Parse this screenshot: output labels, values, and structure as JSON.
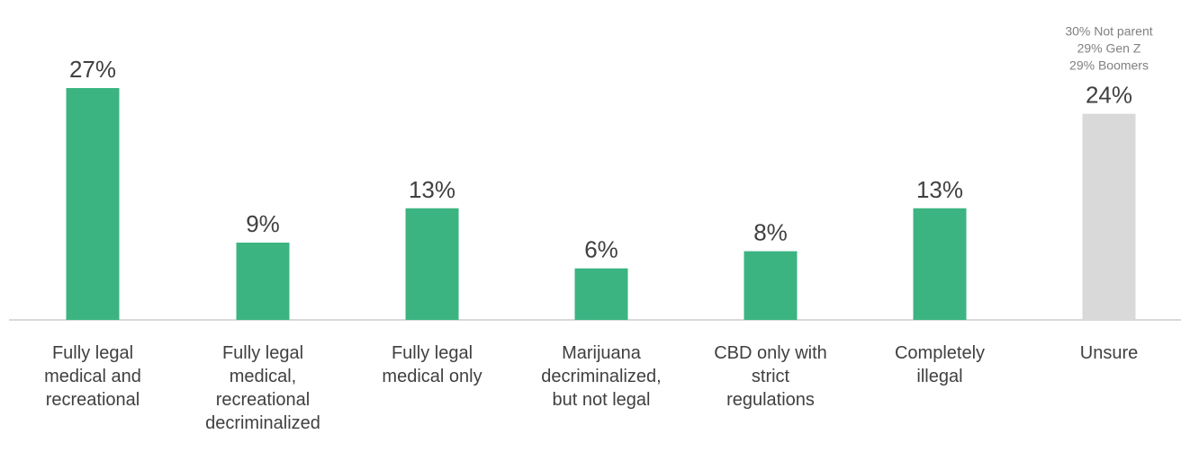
{
  "chart_data": {
    "type": "bar",
    "categories": [
      [
        "Fully legal",
        "medical and",
        "recreational"
      ],
      [
        "Fully legal",
        "medical,",
        "recreational",
        "decriminalized"
      ],
      [
        "Fully legal",
        "medical only"
      ],
      [
        "Marijuana",
        "decriminalized,",
        "but not legal"
      ],
      [
        "CBD only with",
        "strict",
        "regulations"
      ],
      [
        "Completely",
        "illegal"
      ],
      [
        "Unsure"
      ]
    ],
    "values": [
      27,
      9,
      13,
      6,
      8,
      13,
      24
    ],
    "value_labels": [
      "27%",
      "9%",
      "13%",
      "6%",
      "8%",
      "13%",
      "24%"
    ],
    "bar_colors": [
      "#3bb482",
      "#3bb482",
      "#3bb482",
      "#3bb482",
      "#3bb482",
      "#3bb482",
      "#d9d9d9"
    ],
    "annotations": [
      {
        "category_index": 6,
        "lines": [
          "30% Not parent",
          "29% Gen Z",
          "29% Boomers"
        ]
      }
    ],
    "ylim": [
      0,
      28
    ],
    "grid": false,
    "legend": "none"
  },
  "colors": {
    "accent": "#3bb482",
    "muted_bar": "#d9d9d9",
    "text": "#404040",
    "note_text": "#808080",
    "axis": "#d9d9d9"
  }
}
